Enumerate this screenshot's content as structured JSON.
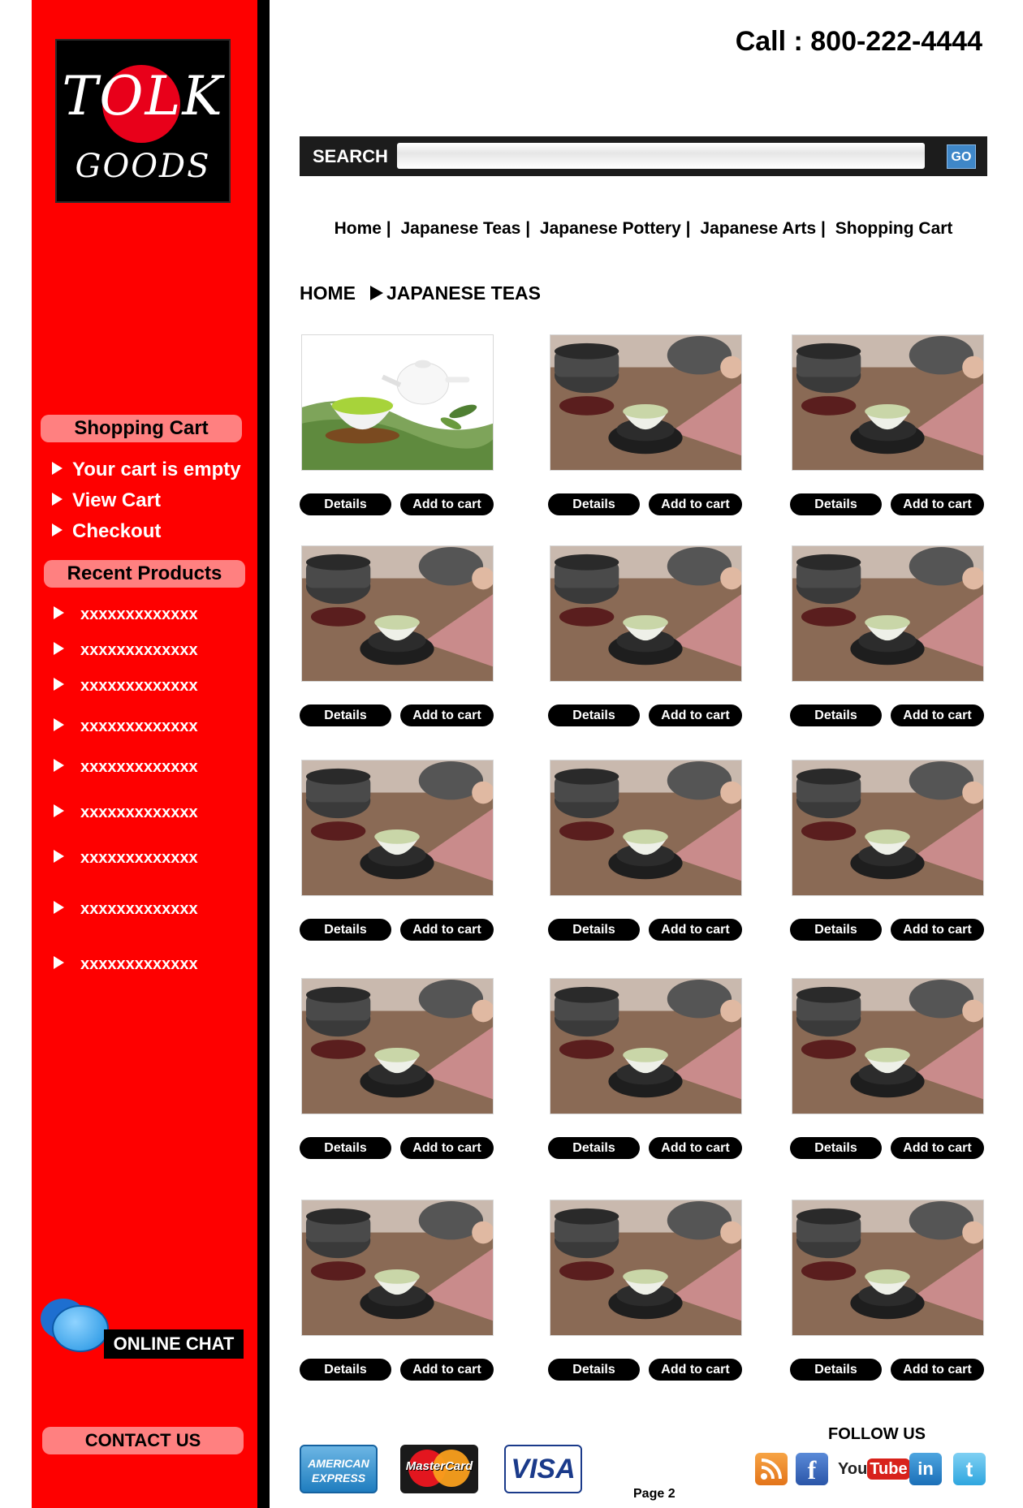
{
  "brand": {
    "logo_top": "TOLK",
    "logo_bottom": "GOODS"
  },
  "header": {
    "phone": "Call : 800-222-4444"
  },
  "search": {
    "label": "SEARCH",
    "placeholder": "",
    "go_label": "GO"
  },
  "nav": {
    "items": [
      "Home |",
      "Japanese Teas |",
      "Japanese Pottery |",
      "Japanese Arts |",
      "Shopping Cart"
    ]
  },
  "breadcrumb": {
    "home": "HOME",
    "current": "JAPANESE TEAS"
  },
  "sidebar": {
    "cart_header": "Shopping Cart",
    "cart_links": [
      "Your cart is empty",
      "View Cart",
      "Checkout"
    ],
    "recent_header": "Recent Products",
    "recent_items": [
      "xxxxxxxxxxxxx",
      "xxxxxxxxxxxxx",
      "xxxxxxxxxxxxx",
      "xxxxxxxxxxxxx",
      "xxxxxxxxxxxxx",
      "xxxxxxxxxxxxx",
      "xxxxxxxxxxxxx",
      "xxxxxxxxxxxxx",
      "xxxxxxxxxxxxx"
    ],
    "chat_label": "ONLINE CHAT",
    "contact_label": "CONTACT US"
  },
  "products": {
    "details_label": "Details",
    "add_label": "Add to cart",
    "rows": 5,
    "cols": 3
  },
  "footer": {
    "cards": {
      "amex_line1": "AMERICAN",
      "amex_line2": "EXPRESS",
      "mastercard": "MasterCard",
      "visa": "VISA"
    },
    "page_label": "Page 2",
    "follow_label": "FOLLOW US",
    "social": {
      "facebook": "f",
      "youtube_a": "You",
      "youtube_b": "Tube",
      "linkedin": "in",
      "twitter": "t"
    }
  },
  "colors": {
    "sidebar": "#fe0000",
    "pill": "#ff8080",
    "button": "#000000"
  }
}
